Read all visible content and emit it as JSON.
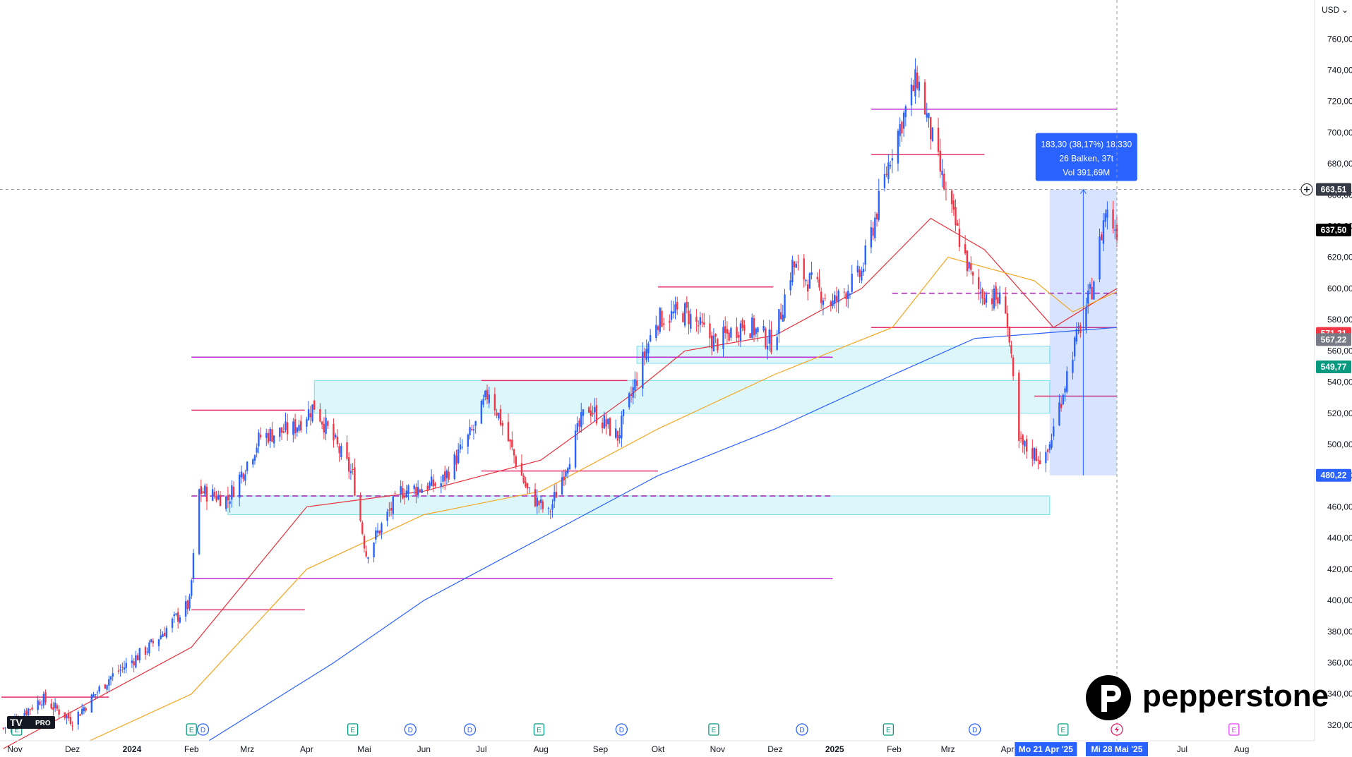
{
  "currency_label": "USD",
  "brand": {
    "name": "pepperstone",
    "tv_label": "PRO"
  },
  "chart_data": {
    "type": "candlestick",
    "title": "",
    "xlabel": "",
    "ylabel": "",
    "ylim": [
      310,
      785
    ],
    "y_ticks": [
      320,
      340,
      360,
      380,
      400,
      420,
      440,
      460,
      480,
      500,
      520,
      540,
      560,
      580,
      600,
      620,
      640,
      660,
      680,
      700,
      720,
      740,
      760
    ],
    "x_ticks": [
      {
        "label": "Nov",
        "date": "2023-11-01",
        "bold": false
      },
      {
        "label": "Dez",
        "date": "2023-12-01",
        "bold": false
      },
      {
        "label": "2024",
        "date": "2024-01-01",
        "bold": true
      },
      {
        "label": "Feb",
        "date": "2024-02-01",
        "bold": false
      },
      {
        "label": "Mrz",
        "date": "2024-03-01",
        "bold": false
      },
      {
        "label": "Apr",
        "date": "2024-04-01",
        "bold": false
      },
      {
        "label": "Mai",
        "date": "2024-05-01",
        "bold": false
      },
      {
        "label": "Jun",
        "date": "2024-06-01",
        "bold": false
      },
      {
        "label": "Jul",
        "date": "2024-07-01",
        "bold": false
      },
      {
        "label": "Aug",
        "date": "2024-08-01",
        "bold": false
      },
      {
        "label": "Sep",
        "date": "2024-09-01",
        "bold": false
      },
      {
        "label": "Okt",
        "date": "2024-10-01",
        "bold": false
      },
      {
        "label": "Nov",
        "date": "2024-11-01",
        "bold": false
      },
      {
        "label": "Dez",
        "date": "2024-12-01",
        "bold": false
      },
      {
        "label": "2025",
        "date": "2025-01-01",
        "bold": true
      },
      {
        "label": "Feb",
        "date": "2025-02-01",
        "bold": false
      },
      {
        "label": "Mrz",
        "date": "2025-03-01",
        "bold": false
      },
      {
        "label": "Apr",
        "date": "2025-04-01",
        "bold": false
      },
      {
        "label": "Jul",
        "date": "2025-07-01",
        "bold": false
      },
      {
        "label": "Aug",
        "date": "2025-08-01",
        "bold": false
      }
    ],
    "x_start": "2023-10-25",
    "x_end": "2025-08-25",
    "date_highlights": [
      {
        "label": "Mo 21 Apr '25",
        "date": "2025-04-21"
      },
      {
        "label": "Mi 28 Mai '25",
        "date": "2025-05-28"
      }
    ],
    "candles_monthly_path": [
      {
        "date": "2023-10-26",
        "value": 318
      },
      {
        "date": "2023-11-15",
        "value": 337
      },
      {
        "date": "2023-12-01",
        "value": 323
      },
      {
        "date": "2023-12-20",
        "value": 350
      },
      {
        "date": "2024-01-10",
        "value": 370
      },
      {
        "date": "2024-01-31",
        "value": 398
      },
      {
        "date": "2024-02-05",
        "value": 470
      },
      {
        "date": "2024-02-20",
        "value": 465
      },
      {
        "date": "2024-03-08",
        "value": 505
      },
      {
        "date": "2024-03-25",
        "value": 510
      },
      {
        "date": "2024-04-05",
        "value": 525
      },
      {
        "date": "2024-04-25",
        "value": 480
      },
      {
        "date": "2024-05-02",
        "value": 430
      },
      {
        "date": "2024-05-20",
        "value": 470
      },
      {
        "date": "2024-06-10",
        "value": 475
      },
      {
        "date": "2024-06-28",
        "value": 512
      },
      {
        "date": "2024-07-05",
        "value": 535
      },
      {
        "date": "2024-07-25",
        "value": 470
      },
      {
        "date": "2024-08-05",
        "value": 455
      },
      {
        "date": "2024-08-25",
        "value": 525
      },
      {
        "date": "2024-09-10",
        "value": 505
      },
      {
        "date": "2024-09-30",
        "value": 580
      },
      {
        "date": "2024-10-15",
        "value": 585
      },
      {
        "date": "2024-10-31",
        "value": 565
      },
      {
        "date": "2024-11-15",
        "value": 578
      },
      {
        "date": "2024-11-30",
        "value": 565
      },
      {
        "date": "2024-12-10",
        "value": 615
      },
      {
        "date": "2024-12-31",
        "value": 590
      },
      {
        "date": "2025-01-15",
        "value": 610
      },
      {
        "date": "2025-01-31",
        "value": 690
      },
      {
        "date": "2025-02-13",
        "value": 735
      },
      {
        "date": "2025-02-28",
        "value": 660
      },
      {
        "date": "2025-03-15",
        "value": 600
      },
      {
        "date": "2025-03-31",
        "value": 590
      },
      {
        "date": "2025-04-07",
        "value": 500
      },
      {
        "date": "2025-04-21",
        "value": 490
      },
      {
        "date": "2025-05-05",
        "value": 560
      },
      {
        "date": "2025-05-15",
        "value": 600
      },
      {
        "date": "2025-05-22",
        "value": 650
      },
      {
        "date": "2025-05-28",
        "value": 637.5
      }
    ],
    "moving_averages": [
      {
        "color": "#e5313b",
        "points": [
          [
            "2023-10-26",
            305
          ],
          [
            "2024-02-01",
            370
          ],
          [
            "2024-04-01",
            460
          ],
          [
            "2024-06-01",
            470
          ],
          [
            "2024-08-01",
            490
          ],
          [
            "2024-09-15",
            530
          ],
          [
            "2024-10-15",
            560
          ],
          [
            "2024-12-01",
            570
          ],
          [
            "2025-01-15",
            600
          ],
          [
            "2025-02-20",
            645
          ],
          [
            "2025-03-20",
            625
          ],
          [
            "2025-04-25",
            575
          ],
          [
            "2025-05-28",
            600
          ]
        ]
      },
      {
        "color": "#f5a623",
        "points": [
          [
            "2023-12-10",
            310
          ],
          [
            "2024-02-01",
            340
          ],
          [
            "2024-04-01",
            420
          ],
          [
            "2024-06-01",
            455
          ],
          [
            "2024-08-01",
            470
          ],
          [
            "2024-10-01",
            510
          ],
          [
            "2024-12-01",
            545
          ],
          [
            "2025-01-31",
            575
          ],
          [
            "2025-03-01",
            620
          ],
          [
            "2025-04-15",
            605
          ],
          [
            "2025-05-05",
            585
          ],
          [
            "2025-05-28",
            598
          ]
        ]
      },
      {
        "color": "#2962ff",
        "points": [
          [
            "2024-02-10",
            310
          ],
          [
            "2024-04-15",
            360
          ],
          [
            "2024-06-01",
            400
          ],
          [
            "2024-08-01",
            440
          ],
          [
            "2024-10-01",
            480
          ],
          [
            "2024-12-01",
            510
          ],
          [
            "2025-02-01",
            545
          ],
          [
            "2025-03-15",
            568
          ],
          [
            "2025-04-15",
            571
          ],
          [
            "2025-05-28",
            575
          ]
        ]
      }
    ],
    "horizontal_levels": [
      {
        "value": 715,
        "color": "#c026d3",
        "from": "2025-01-20",
        "to": "2025-05-28"
      },
      {
        "value": 686,
        "color": "#e5316b",
        "from": "2025-01-20",
        "to": "2025-03-20"
      },
      {
        "value": 556,
        "color": "#c026d3",
        "from": "2024-02-01",
        "to": "2024-12-31"
      },
      {
        "value": 522,
        "color": "#e5316b",
        "from": "2024-02-01",
        "to": "2024-03-31"
      },
      {
        "value": 414,
        "color": "#c026d3",
        "from": "2024-02-01",
        "to": "2024-12-31"
      },
      {
        "value": 394,
        "color": "#e5316b",
        "from": "2024-02-01",
        "to": "2024-03-31"
      },
      {
        "value": 338,
        "color": "#e5316b",
        "from": "2023-10-25",
        "to": "2023-12-20"
      },
      {
        "value": 467,
        "color": "#a21caf",
        "from": "2024-02-01",
        "to": "2024-12-31",
        "dashed": true
      },
      {
        "value": 597,
        "color": "#a21caf",
        "from": "2025-01-31",
        "to": "2025-05-28",
        "dashed": true
      },
      {
        "value": 601,
        "color": "#e5316b",
        "from": "2024-10-01",
        "to": "2024-11-30"
      },
      {
        "value": 541,
        "color": "#e5316b",
        "from": "2024-07-01",
        "to": "2024-09-15"
      },
      {
        "value": 483,
        "color": "#e5316b",
        "from": "2024-07-01",
        "to": "2024-10-01"
      },
      {
        "value": 531,
        "color": "#e5316b",
        "from": "2025-04-15",
        "to": "2025-05-28"
      },
      {
        "value": 575,
        "color": "#e5316b",
        "from": "2025-01-20",
        "to": "2025-05-28"
      }
    ],
    "zones": [
      {
        "from_value": 552,
        "to_value": 563,
        "from": "2024-09-20",
        "to": "2025-04-23"
      },
      {
        "from_value": 520,
        "to_value": 541,
        "from": "2024-04-05",
        "to": "2025-04-23"
      },
      {
        "from_value": 455,
        "to_value": 467,
        "from": "2024-02-20",
        "to": "2025-04-23"
      }
    ],
    "measure_box": {
      "from": "2025-04-23",
      "to": "2025-05-28",
      "low": 480.22,
      "high": 663.51,
      "lines": [
        "183,30 (38,17%) 18.330",
        "26 Balken, 37t",
        "Vol 391,69M"
      ]
    },
    "crosshair_price": 663.51,
    "crosshair_date": "2025-05-28",
    "price_labels": [
      {
        "value": 663.51,
        "text": "663,51",
        "bg": "#363a45"
      },
      {
        "value": 637.5,
        "text": "637,50",
        "bg": "#000000"
      },
      {
        "value": 571.21,
        "text": "571,21",
        "bg": "#f23645"
      },
      {
        "value": 567.22,
        "text": "567,22",
        "bg": "#787b86"
      },
      {
        "value": 549.77,
        "text": "549,77",
        "bg": "#089981"
      },
      {
        "value": 480.22,
        "text": "480,22",
        "bg": "#2962ff"
      }
    ],
    "event_markers": [
      {
        "date": "2023-11-02",
        "type": "E"
      },
      {
        "date": "2024-02-01",
        "type": "E"
      },
      {
        "date": "2024-02-07",
        "type": "D"
      },
      {
        "date": "2024-04-25",
        "type": "E"
      },
      {
        "date": "2024-05-25",
        "type": "D"
      },
      {
        "date": "2024-06-25",
        "type": "D"
      },
      {
        "date": "2024-07-31",
        "type": "E"
      },
      {
        "date": "2024-09-12",
        "type": "D"
      },
      {
        "date": "2024-10-30",
        "type": "E"
      },
      {
        "date": "2024-12-15",
        "type": "D"
      },
      {
        "date": "2025-01-29",
        "type": "E"
      },
      {
        "date": "2025-03-15",
        "type": "D"
      },
      {
        "date": "2025-04-30",
        "type": "E"
      },
      {
        "date": "2025-05-28",
        "type": "flash"
      },
      {
        "date": "2025-07-28",
        "type": "E"
      }
    ]
  }
}
